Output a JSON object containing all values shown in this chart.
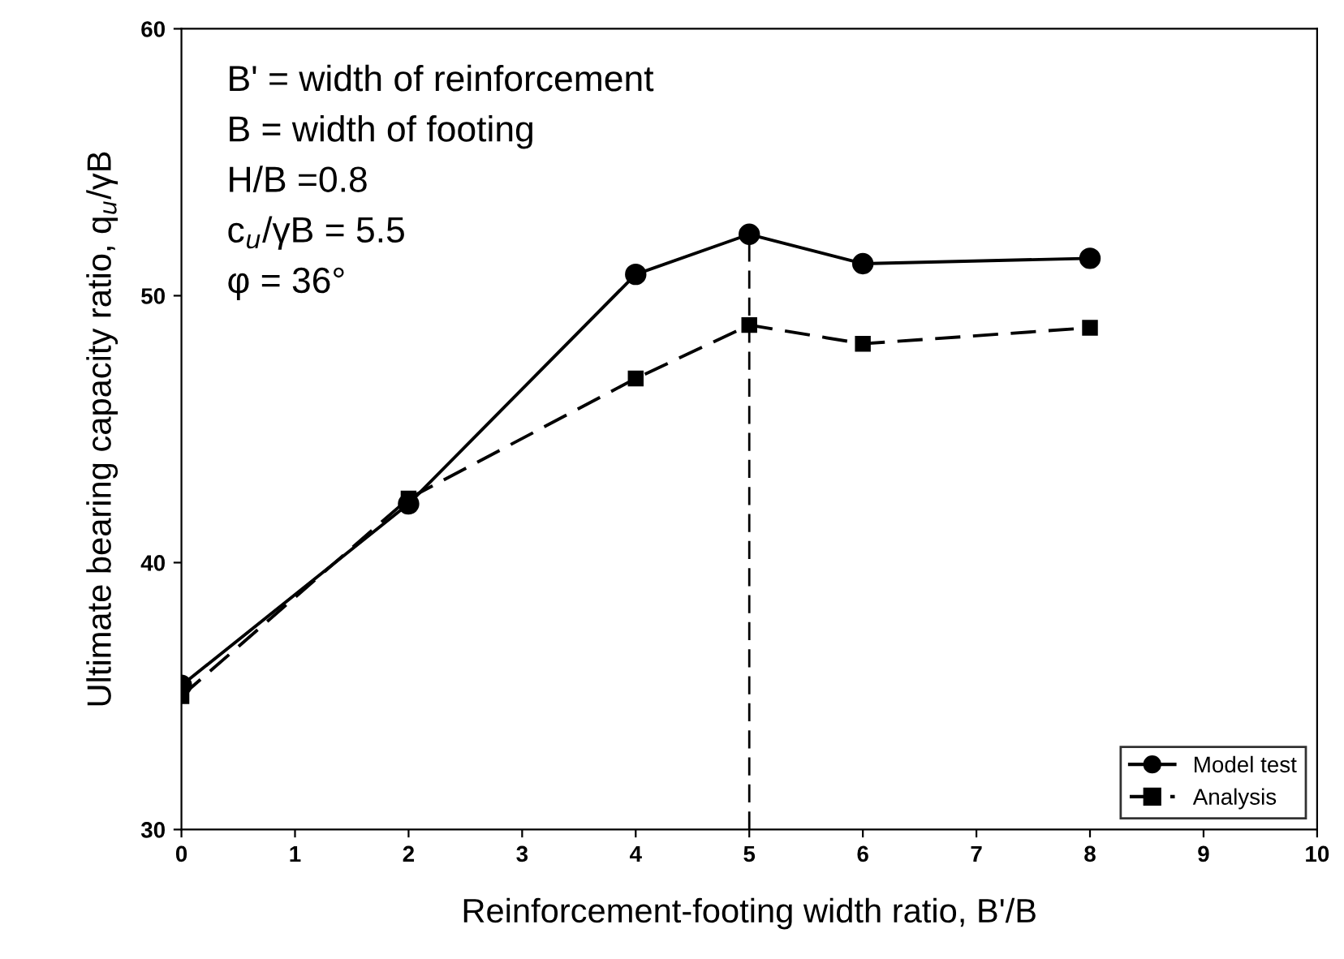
{
  "chart_data": {
    "type": "line",
    "xlabel": "Reinforcement-footing width ratio, B'/B",
    "ylabel": "Ultimate bearing capacity ratio, q$_{u}$/γB",
    "x": [
      0,
      2,
      4,
      5,
      6,
      8
    ],
    "series": [
      {
        "name": "Model test",
        "color": "#000000",
        "marker": "circle",
        "line_style": "solid",
        "values": [
          35.4,
          42.2,
          50.8,
          52.3,
          51.2,
          51.4
        ]
      },
      {
        "name": "Analysis",
        "color": "#000000",
        "marker": "square",
        "line_style": "dashed",
        "values": [
          35.0,
          42.4,
          46.9,
          48.9,
          48.2,
          48.8
        ]
      }
    ],
    "xlim": [
      0,
      10
    ],
    "xticks": [
      0,
      1,
      2,
      3,
      4,
      5,
      6,
      7,
      8,
      9,
      10
    ],
    "ylim": [
      30,
      60
    ],
    "yticks": [
      30,
      40,
      50,
      60
    ],
    "ref_lines": [
      {
        "axis": "x",
        "value": 5,
        "line_style": "dashed",
        "color": "#000000"
      }
    ],
    "annotations": [
      "B' = width of reinforcement",
      "B = width of footing",
      "H/B =0.8",
      "c$_{u}$/γB = 5.5",
      "φ = 36°"
    ],
    "legend": "bottom right",
    "grid": false
  }
}
